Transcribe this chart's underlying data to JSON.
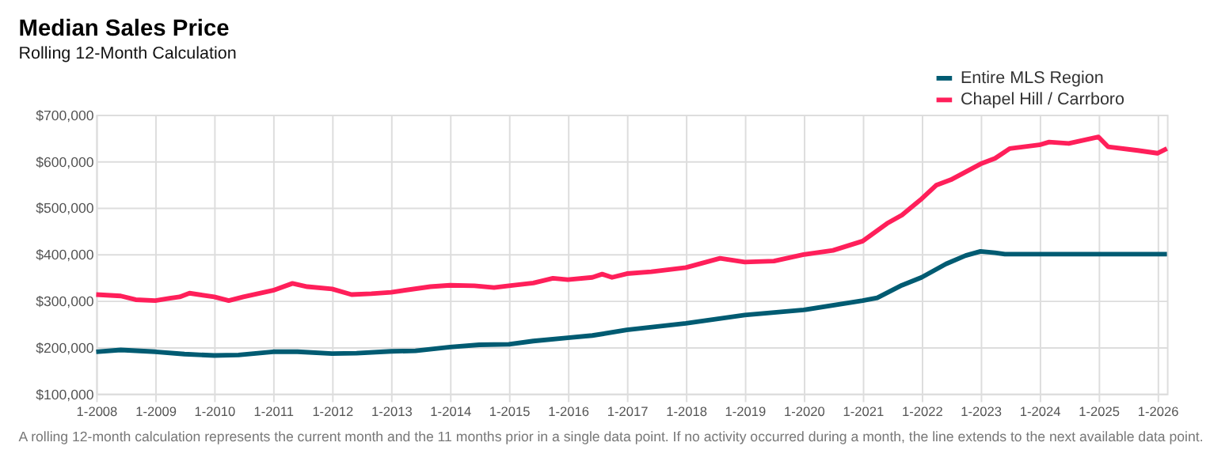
{
  "chart_data": {
    "type": "line",
    "title": "Median Sales Price",
    "subtitle": "Rolling 12-Month Calculation",
    "annotations": [
      "A rolling 12-month calculation represents the current month and the 11 months prior in a single data point. If no activity occurred during a month, the line extends to the next available data point."
    ],
    "series": [
      {
        "name": "Entire MLS Region",
        "color": "#005b72",
        "x": [
          "2008-01",
          "2008-06",
          "2009-01",
          "2009-07",
          "2010-01",
          "2010-06",
          "2011-01",
          "2011-06",
          "2012-01",
          "2012-06",
          "2013-01",
          "2013-06",
          "2014-01",
          "2014-07",
          "2015-01",
          "2015-06",
          "2016-01",
          "2016-06",
          "2017-01",
          "2018-01",
          "2019-01",
          "2020-01",
          "2021-01",
          "2021-04",
          "2021-09",
          "2022-01",
          "2022-06",
          "2022-10",
          "2023-01",
          "2023-04",
          "2023-06",
          "2026-03"
        ],
        "values": [
          190000,
          194000,
          190000,
          185000,
          182000,
          183000,
          190000,
          190000,
          186000,
          187000,
          191000,
          192000,
          200000,
          205000,
          206000,
          213000,
          220000,
          225000,
          237000,
          251000,
          269000,
          280000,
          300000,
          306000,
          333000,
          350000,
          379000,
          397000,
          406000,
          403000,
          400000,
          400000
        ]
      },
      {
        "name": "Chapel Hill / Carrboro",
        "color": "#ff1f5a",
        "x": [
          "2008-01",
          "2008-06",
          "2008-09",
          "2009-01",
          "2009-04",
          "2009-06",
          "2009-08",
          "2010-01",
          "2010-04",
          "2010-07",
          "2011-01",
          "2011-05",
          "2011-08",
          "2012-01",
          "2012-05",
          "2012-09",
          "2013-01",
          "2013-09",
          "2014-01",
          "2014-06",
          "2014-10",
          "2015-01",
          "2015-06",
          "2015-10",
          "2016-01",
          "2016-06",
          "2016-08",
          "2016-10",
          "2017-01",
          "2017-06",
          "2018-01",
          "2018-08",
          "2019-01",
          "2019-07",
          "2020-01",
          "2020-07",
          "2021-01",
          "2021-06",
          "2021-09",
          "2022-01",
          "2022-04",
          "2022-07",
          "2022-10",
          "2023-01",
          "2023-04",
          "2023-07",
          "2024-01",
          "2024-03",
          "2024-07",
          "2025-01",
          "2025-03",
          "2025-09",
          "2026-01",
          "2026-03"
        ],
        "values": [
          313000,
          310000,
          302000,
          300000,
          305000,
          308000,
          316000,
          308000,
          300000,
          308000,
          322000,
          337000,
          330000,
          325000,
          313000,
          315000,
          318000,
          330000,
          333000,
          332000,
          328000,
          332000,
          338000,
          348000,
          345000,
          350000,
          357000,
          350000,
          358000,
          362000,
          371000,
          391000,
          383000,
          385000,
          399000,
          408000,
          428000,
          466000,
          484000,
          519000,
          548000,
          560000,
          577000,
          594000,
          606000,
          627000,
          635000,
          641000,
          638000,
          652000,
          631000,
          623000,
          617000,
          627000
        ]
      }
    ],
    "xlim": [
      "2008-01",
      "2026-03"
    ],
    "xticks": [
      {
        "value": "2008-01",
        "label": "1-2008"
      },
      {
        "value": "2009-01",
        "label": "1-2009"
      },
      {
        "value": "2010-01",
        "label": "1-2010"
      },
      {
        "value": "2011-01",
        "label": "1-2011"
      },
      {
        "value": "2012-01",
        "label": "1-2012"
      },
      {
        "value": "2013-01",
        "label": "1-2013"
      },
      {
        "value": "2014-01",
        "label": "1-2014"
      },
      {
        "value": "2015-01",
        "label": "1-2015"
      },
      {
        "value": "2016-01",
        "label": "1-2016"
      },
      {
        "value": "2017-01",
        "label": "1-2017"
      },
      {
        "value": "2018-01",
        "label": "1-2018"
      },
      {
        "value": "2019-01",
        "label": "1-2019"
      },
      {
        "value": "2020-01",
        "label": "1-2020"
      },
      {
        "value": "2021-01",
        "label": "1-2021"
      },
      {
        "value": "2022-01",
        "label": "1-2022"
      },
      {
        "value": "2023-01",
        "label": "1-2023"
      },
      {
        "value": "2024-01",
        "label": "1-2024"
      },
      {
        "value": "2025-01",
        "label": "1-2025"
      },
      {
        "value": "2026-01",
        "label": "1-2026"
      }
    ],
    "ylim": [
      100000,
      700000
    ],
    "yticks": [
      {
        "value": 100000,
        "label": "$100,000"
      },
      {
        "value": 200000,
        "label": "$200,000"
      },
      {
        "value": 300000,
        "label": "$300,000"
      },
      {
        "value": 400000,
        "label": "$400,000"
      },
      {
        "value": 500000,
        "label": "$500,000"
      },
      {
        "value": 600000,
        "label": "$600,000"
      },
      {
        "value": 700000,
        "label": "$700,000"
      }
    ],
    "grid": true,
    "legend": "top right",
    "marker": "none",
    "line_style": "solid"
  }
}
